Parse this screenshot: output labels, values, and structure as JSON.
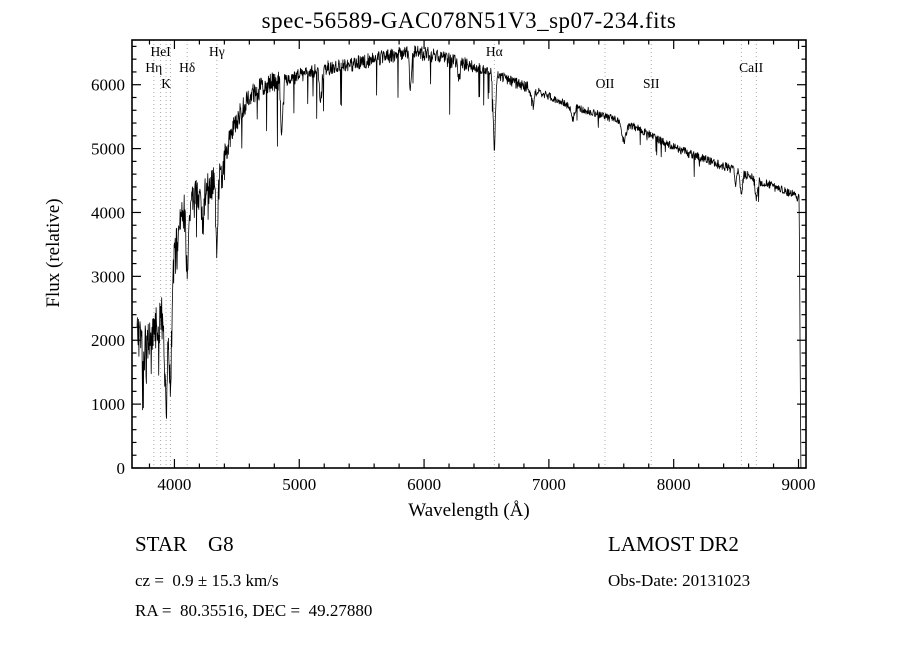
{
  "title": "spec-56589-GAC078N51V3_sp07-234.fits",
  "footer": {
    "class_label": "STAR    G8",
    "survey": "LAMOST DR2",
    "cz": "cz =  0.9 ± 15.3 km/s",
    "obs_date": "Obs-Date: 20131023",
    "radec": "RA =  80.35516, DEC =  49.27880"
  },
  "chart_data": {
    "type": "line",
    "title": "spec-56589-GAC078N51V3_sp07-234.fits",
    "xlabel": "Wavelength (Å)",
    "ylabel": "Flux (relative)",
    "xlim": [
      3660,
      9060
    ],
    "ylim": [
      0,
      6700
    ],
    "x_major_ticks": [
      4000,
      5000,
      6000,
      7000,
      8000,
      9000
    ],
    "y_major_ticks": [
      0,
      1000,
      2000,
      3000,
      4000,
      5000,
      6000
    ],
    "x_minor_step": 200,
    "y_minor_step": 200,
    "grid": false,
    "legend": "none",
    "series_color": "#000000",
    "marker_line_color": "#aaaaaa",
    "seed": 20131023,
    "wave_start": 3700,
    "wave_end": 9050,
    "step": 3,
    "cliff": 9005,
    "marker_lines": [
      3835,
      3889,
      3933,
      3968,
      4102,
      4340,
      6563,
      7450,
      7820,
      8542,
      8662
    ],
    "marker_labels": [
      {
        "text": "HeI",
        "wave": 3889,
        "row": 0
      },
      {
        "text": "Hγ",
        "wave": 4340,
        "row": 0
      },
      {
        "text": "Hα",
        "wave": 6563,
        "row": 0
      },
      {
        "text": "Hη",
        "wave": 3835,
        "row": 1
      },
      {
        "text": "Hδ",
        "wave": 4102,
        "row": 1
      },
      {
        "text": "CaII",
        "wave": 8620,
        "row": 1
      },
      {
        "text": "K",
        "wave": 3933,
        "row": 2
      },
      {
        "text": "OII",
        "wave": 7450,
        "row": 2
      },
      {
        "text": "SII",
        "wave": 7820,
        "row": 2
      }
    ],
    "envelope": [
      [
        3700,
        2100
      ],
      [
        3760,
        1900
      ],
      [
        3820,
        2100
      ],
      [
        3880,
        2300
      ],
      [
        3940,
        2400
      ],
      [
        4000,
        3300
      ],
      [
        4060,
        4000
      ],
      [
        4120,
        4100
      ],
      [
        4180,
        4250
      ],
      [
        4240,
        4350
      ],
      [
        4300,
        4450
      ],
      [
        4360,
        4650
      ],
      [
        4420,
        5000
      ],
      [
        4480,
        5350
      ],
      [
        4540,
        5600
      ],
      [
        4600,
        5800
      ],
      [
        4700,
        5950
      ],
      [
        4800,
        6050
      ],
      [
        4900,
        6050
      ],
      [
        5000,
        6150
      ],
      [
        5100,
        6200
      ],
      [
        5200,
        6250
      ],
      [
        5350,
        6300
      ],
      [
        5500,
        6350
      ],
      [
        5650,
        6420
      ],
      [
        5800,
        6480
      ],
      [
        5950,
        6500
      ],
      [
        6100,
        6450
      ],
      [
        6250,
        6350
      ],
      [
        6400,
        6280
      ],
      [
        6550,
        6200
      ],
      [
        6700,
        6050
      ],
      [
        6850,
        5950
      ],
      [
        7000,
        5820
      ],
      [
        7150,
        5680
      ],
      [
        7300,
        5600
      ],
      [
        7450,
        5500
      ],
      [
        7600,
        5420
      ],
      [
        7750,
        5280
      ],
      [
        7900,
        5120
      ],
      [
        8050,
        4980
      ],
      [
        8200,
        4870
      ],
      [
        8350,
        4760
      ],
      [
        8500,
        4660
      ],
      [
        8650,
        4520
      ],
      [
        8800,
        4400
      ],
      [
        8950,
        4280
      ],
      [
        9060,
        4150
      ]
    ],
    "absorption_lines": [
      [
        3933,
        1500,
        10
      ],
      [
        3968,
        1500,
        10
      ],
      [
        4102,
        900,
        9
      ],
      [
        4227,
        500,
        8
      ],
      [
        4340,
        1100,
        9
      ],
      [
        4383,
        400,
        7
      ],
      [
        4861,
        800,
        9
      ],
      [
        5172,
        450,
        10
      ],
      [
        5890,
        550,
        8
      ],
      [
        6280,
        250,
        8
      ],
      [
        6563,
        1150,
        9
      ],
      [
        6870,
        250,
        12
      ],
      [
        7190,
        200,
        12
      ],
      [
        7600,
        300,
        18
      ],
      [
        8498,
        200,
        8
      ],
      [
        8542,
        300,
        9
      ],
      [
        8662,
        300,
        9
      ]
    ],
    "noise_regions": [
      [
        3700,
        3995,
        350
      ],
      [
        3995,
        4400,
        280
      ],
      [
        4400,
        4900,
        170
      ],
      [
        4900,
        6400,
        115
      ],
      [
        6400,
        6900,
        85
      ],
      [
        6900,
        8000,
        60
      ],
      [
        8000,
        9060,
        70
      ]
    ]
  }
}
